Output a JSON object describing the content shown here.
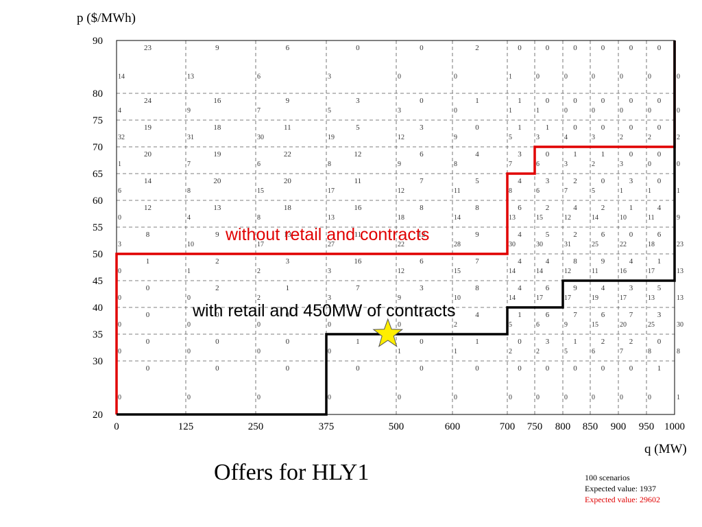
{
  "chart_data": {
    "type": "heatmap",
    "title": "Offers for HLY1",
    "xlabel": "q (MW)",
    "ylabel": "p ($/MWh)",
    "x_edges": [
      0,
      125,
      250,
      375,
      500,
      600,
      700,
      750,
      800,
      850,
      900,
      950,
      1000
    ],
    "y_edges": [
      20,
      30,
      35,
      40,
      45,
      50,
      55,
      60,
      65,
      70,
      75,
      80,
      90
    ],
    "x_ticks": [
      0,
      125,
      250,
      375,
      500,
      600,
      700,
      750,
      800,
      850,
      900,
      950,
      1000
    ],
    "y_ticks": [
      20,
      30,
      35,
      40,
      45,
      50,
      55,
      60,
      65,
      70,
      75,
      80,
      90
    ],
    "grid": true,
    "row_counts_top_to_bottom": [
      [
        [
          23,
          14
        ],
        [
          9,
          13
        ],
        [
          6,
          6
        ],
        [
          0,
          3
        ],
        [
          0,
          0
        ],
        [
          2,
          0
        ],
        [
          0,
          1
        ],
        [
          0,
          0
        ],
        [
          0,
          0
        ],
        [
          0,
          0
        ],
        [
          0,
          0
        ],
        [
          0,
          0
        ]
      ],
      [
        [
          24,
          4
        ],
        [
          16,
          9
        ],
        [
          9,
          7
        ],
        [
          3,
          5
        ],
        [
          0,
          3
        ],
        [
          1,
          0
        ],
        [
          1,
          1
        ],
        [
          0,
          1
        ],
        [
          0,
          0
        ],
        [
          0,
          0
        ],
        [
          0,
          0
        ],
        [
          0,
          0
        ]
      ],
      [
        [
          19,
          32
        ],
        [
          18,
          31
        ],
        [
          11,
          30
        ],
        [
          5,
          19
        ],
        [
          3,
          12
        ],
        [
          0,
          9
        ],
        [
          1,
          5
        ],
        [
          1,
          3
        ],
        [
          0,
          4
        ],
        [
          0,
          3
        ],
        [
          0,
          2
        ],
        [
          0,
          2
        ]
      ],
      [
        [
          20,
          1
        ],
        [
          19,
          7
        ],
        [
          22,
          6
        ],
        [
          12,
          8
        ],
        [
          6,
          9
        ],
        [
          4,
          8
        ],
        [
          3,
          7
        ],
        [
          0,
          6
        ],
        [
          1,
          3
        ],
        [
          1,
          2
        ],
        [
          0,
          3
        ],
        [
          0,
          0
        ]
      ],
      [
        [
          14,
          6
        ],
        [
          20,
          8
        ],
        [
          20,
          15
        ],
        [
          11,
          17
        ],
        [
          7,
          12
        ],
        [
          5,
          11
        ],
        [
          4,
          8
        ],
        [
          3,
          6
        ],
        [
          2,
          7
        ],
        [
          0,
          5
        ],
        [
          3,
          1
        ],
        [
          0,
          1
        ]
      ],
      [
        [
          12,
          0
        ],
        [
          13,
          4
        ],
        [
          18,
          8
        ],
        [
          16,
          13
        ],
        [
          8,
          18
        ],
        [
          8,
          14
        ],
        [
          6,
          13
        ],
        [
          2,
          15
        ],
        [
          4,
          12
        ],
        [
          2,
          14
        ],
        [
          1,
          10
        ],
        [
          4,
          11
        ]
      ],
      [
        [
          8,
          3
        ],
        [
          9,
          10
        ],
        [
          13,
          17
        ],
        [
          11,
          27
        ],
        [
          12,
          22
        ],
        [
          9,
          28
        ],
        [
          4,
          30
        ],
        [
          5,
          30
        ],
        [
          2,
          31
        ],
        [
          6,
          25
        ],
        [
          0,
          22
        ],
        [
          6,
          18
        ]
      ],
      [
        [
          1,
          0
        ],
        [
          2,
          1
        ],
        [
          3,
          2
        ],
        [
          16,
          3
        ],
        [
          6,
          12
        ],
        [
          7,
          15
        ],
        [
          4,
          14
        ],
        [
          4,
          14
        ],
        [
          8,
          12
        ],
        [
          9,
          11
        ],
        [
          4,
          16
        ],
        [
          1,
          17
        ]
      ],
      [
        [
          0,
          0
        ],
        [
          2,
          0
        ],
        [
          1,
          2
        ],
        [
          7,
          3
        ],
        [
          3,
          9
        ],
        [
          8,
          10
        ],
        [
          4,
          14
        ],
        [
          6,
          17
        ],
        [
          9,
          17
        ],
        [
          4,
          19
        ],
        [
          3,
          17
        ],
        [
          5,
          13
        ]
      ],
      [
        [
          0,
          0
        ],
        [
          0,
          0
        ],
        [
          0,
          0
        ],
        [
          0,
          0
        ],
        [
          1,
          0
        ],
        [
          4,
          2
        ],
        [
          1,
          5
        ],
        [
          6,
          6
        ],
        [
          7,
          9
        ],
        [
          6,
          15
        ],
        [
          7,
          20
        ],
        [
          3,
          25
        ]
      ],
      [
        [
          0,
          0
        ],
        [
          0,
          0
        ],
        [
          0,
          0
        ],
        [
          1,
          0
        ],
        [
          0,
          1
        ],
        [
          1,
          1
        ],
        [
          0,
          2
        ],
        [
          3,
          2
        ],
        [
          1,
          5
        ],
        [
          2,
          6
        ],
        [
          2,
          7
        ],
        [
          0,
          8
        ]
      ],
      [
        [
          0,
          0
        ],
        [
          0,
          0
        ],
        [
          0,
          0
        ],
        [
          0,
          0
        ],
        [
          0,
          0
        ],
        [
          0,
          0
        ],
        [
          0,
          0
        ],
        [
          0,
          0
        ],
        [
          0,
          0
        ],
        [
          0,
          0
        ],
        [
          0,
          0
        ],
        [
          1,
          0
        ]
      ]
    ],
    "right_edge_counts_top_to_bottom": [
      0,
      0,
      2,
      0,
      1,
      9,
      23,
      13,
      13,
      30,
      8,
      1
    ],
    "series": [
      {
        "name": "without retail and contracts",
        "color": "#e00000",
        "points": [
          [
            0,
            20
          ],
          [
            0,
            50
          ],
          [
            700,
            50
          ],
          [
            700,
            65
          ],
          [
            750,
            65
          ],
          [
            750,
            70
          ],
          [
            1000,
            70
          ],
          [
            1000,
            90
          ]
        ]
      },
      {
        "name": "with retail and 450MW of contracts",
        "color": "#000000",
        "points": [
          [
            0,
            20
          ],
          [
            375,
            20
          ],
          [
            375,
            35
          ],
          [
            700,
            35
          ],
          [
            700,
            40
          ],
          [
            800,
            40
          ],
          [
            800,
            45
          ],
          [
            1000,
            45
          ],
          [
            1000,
            90
          ]
        ]
      }
    ],
    "marker": {
      "shape": "star",
      "color": "#ffee00",
      "x": 485,
      "y": 35
    },
    "annotations": [
      {
        "text": "without retail and contracts",
        "color": "#e00000"
      },
      {
        "text": "with retail and 450MW of contracts",
        "color": "#000000"
      }
    ]
  },
  "stats": {
    "line1": "100 scenarios",
    "line2": "Expected value: 1937",
    "line3": "Expected value: 29602"
  }
}
